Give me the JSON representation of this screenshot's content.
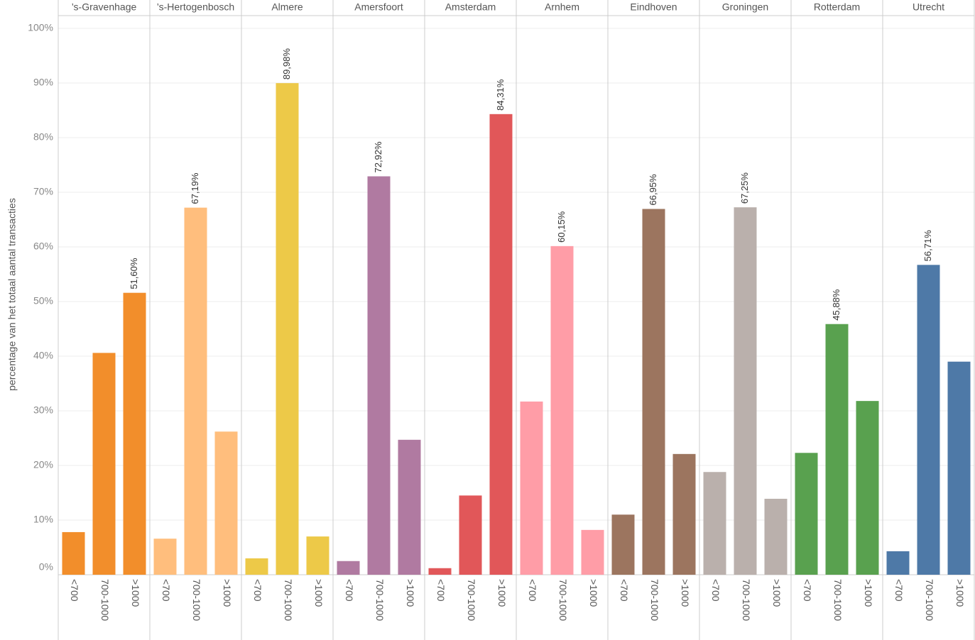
{
  "chart_data": {
    "type": "bar",
    "y_label": "percentage van het totaal aantal transacties",
    "ylim": [
      0,
      100
    ],
    "yticks": [
      {
        "value": 0,
        "label": "0%"
      },
      {
        "value": 10,
        "label": "10%"
      },
      {
        "value": 20,
        "label": "20%"
      },
      {
        "value": 30,
        "label": "30%"
      },
      {
        "value": 40,
        "label": "40%"
      },
      {
        "value": 50,
        "label": "50%"
      },
      {
        "value": 60,
        "label": "60%"
      },
      {
        "value": 70,
        "label": "70%"
      },
      {
        "value": 80,
        "label": "80%"
      },
      {
        "value": 90,
        "label": "90%"
      },
      {
        "value": 100,
        "label": "100%"
      }
    ],
    "grid": true,
    "facets": [
      {
        "name": "’s-Gravenhage",
        "color": "#f28e2b",
        "categories": [
          "<700",
          "700-1000",
          ">1000"
        ],
        "values": [
          7.8,
          40.6,
          51.6
        ],
        "value_labels": [
          null,
          null,
          "51,60%"
        ]
      },
      {
        "name": "’s-Hertogenbosch",
        "color": "#ffbe7d",
        "categories": [
          "<700",
          "700-1000",
          ">1000"
        ],
        "values": [
          6.6,
          67.19,
          26.2
        ],
        "value_labels": [
          null,
          "67,19%",
          null
        ]
      },
      {
        "name": "Almere",
        "color": "#edc948",
        "categories": [
          "<700",
          "700-1000",
          ">1000"
        ],
        "values": [
          3.0,
          89.98,
          7.0
        ],
        "value_labels": [
          null,
          "89,98%",
          null
        ]
      },
      {
        "name": "Amersfoort",
        "color": "#b07aa1",
        "categories": [
          "<700",
          "700-1000",
          ">1000"
        ],
        "values": [
          2.5,
          72.92,
          24.7
        ],
        "value_labels": [
          null,
          "72,92%",
          null
        ]
      },
      {
        "name": "Amsterdam",
        "color": "#e15759",
        "categories": [
          "<700",
          "700-1000",
          ">1000"
        ],
        "values": [
          1.2,
          14.5,
          84.31
        ],
        "value_labels": [
          null,
          null,
          "84,31%"
        ]
      },
      {
        "name": "Arnhem",
        "color": "#ff9da7",
        "categories": [
          "<700",
          "700-1000",
          ">1000"
        ],
        "values": [
          31.7,
          60.15,
          8.2
        ],
        "value_labels": [
          null,
          "60,15%",
          null
        ]
      },
      {
        "name": "Eindhoven",
        "color": "#9c755f",
        "categories": [
          "<700",
          "700-1000",
          ">1000"
        ],
        "values": [
          11.0,
          66.95,
          22.1
        ],
        "value_labels": [
          null,
          "66,95%",
          null
        ]
      },
      {
        "name": "Groningen",
        "color": "#bab0ac",
        "categories": [
          "<700",
          "700-1000",
          ">1000"
        ],
        "values": [
          18.8,
          67.25,
          13.9
        ],
        "value_labels": [
          null,
          "67,25%",
          null
        ]
      },
      {
        "name": "Rotterdam",
        "color": "#59a14f",
        "categories": [
          "<700",
          "700-1000",
          ">1000"
        ],
        "values": [
          22.3,
          45.88,
          31.8
        ],
        "value_labels": [
          null,
          "45,88%",
          null
        ]
      },
      {
        "name": "Utrecht",
        "color": "#4e79a7",
        "categories": [
          "<700",
          "700-1000",
          ">1000"
        ],
        "values": [
          4.3,
          56.71,
          39.0
        ],
        "value_labels": [
          null,
          "56,71%",
          null
        ]
      }
    ]
  }
}
